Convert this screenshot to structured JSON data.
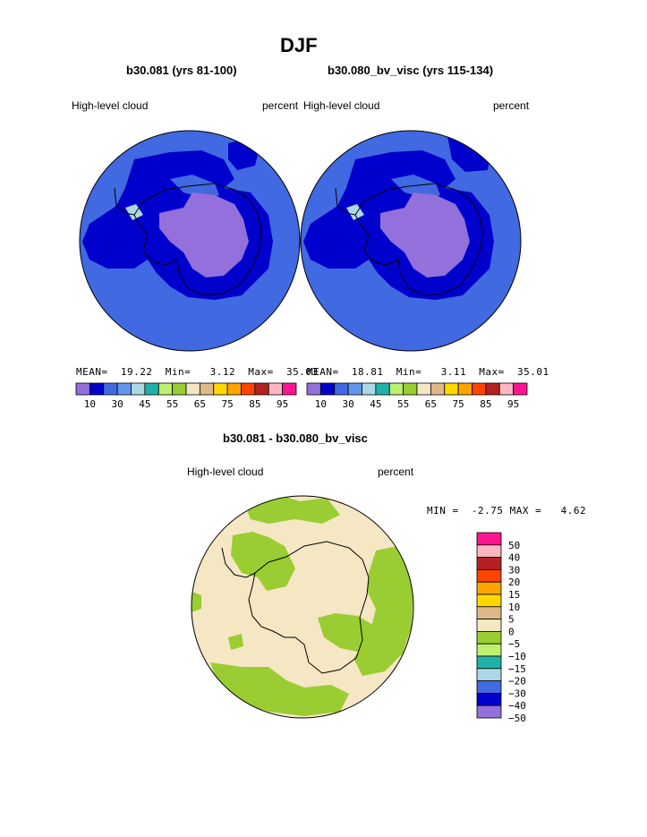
{
  "figure": {
    "title": "DJF",
    "diff_title": "b30.081 - b30.080_bv_visc"
  },
  "chart_data": [
    {
      "type": "heatmap",
      "projection": "south-polar-stereographic",
      "case_title": "b30.081 (yrs 81-100)",
      "field_label": "High-level cloud",
      "units_label": "percent",
      "stats_label": "MEAN=  19.22  Min=   3.12  Max=  35.03",
      "mean": 19.22,
      "min": 3.12,
      "max": 35.03,
      "color_levels": [
        10,
        30,
        45,
        55,
        65,
        75,
        85,
        95
      ],
      "colors": [
        "#9370db",
        "#0000cd",
        "#4169e1",
        "#6495ed",
        "#add8e6",
        "#20b2aa",
        "#bfef6f",
        "#9acd32",
        "#f5e6c4",
        "#deb887",
        "#ffd700",
        "#ffa500",
        "#ff4500",
        "#b22222",
        "#ffb6c1",
        "#ff1493"
      ]
    },
    {
      "type": "heatmap",
      "projection": "south-polar-stereographic",
      "case_title": "b30.080_bv_visc (yrs 115-134)",
      "field_label": "High-level cloud",
      "units_label": "percent",
      "stats_label": "MEAN=  18.81  Min=   3.11  Max=  35.01",
      "mean": 18.81,
      "min": 3.11,
      "max": 35.01,
      "color_levels": [
        10,
        30,
        45,
        55,
        65,
        75,
        85,
        95
      ],
      "colors": [
        "#9370db",
        "#0000cd",
        "#4169e1",
        "#6495ed",
        "#add8e6",
        "#20b2aa",
        "#bfef6f",
        "#9acd32",
        "#f5e6c4",
        "#deb887",
        "#ffd700",
        "#ffa500",
        "#ff4500",
        "#b22222",
        "#ffb6c1",
        "#ff1493"
      ]
    },
    {
      "type": "heatmap",
      "projection": "south-polar-stereographic",
      "case_title": "b30.081 - b30.080_bv_visc",
      "field_label": "High-level cloud",
      "units_label": "percent",
      "stats_label": "MIN =  -2.75 MAX =   4.62",
      "min": -2.75,
      "max": 4.62,
      "legend_orientation": "vertical",
      "legend_position": "right",
      "color_levels": [
        50,
        40,
        30,
        20,
        15,
        10,
        5,
        0,
        -5,
        -10,
        -15,
        -20,
        -30,
        -40,
        -50
      ],
      "level_labels": [
        "50",
        "40",
        "30",
        "20",
        "15",
        "10",
        "5",
        "0",
        "−5",
        "−10",
        "−15",
        "−20",
        "−30",
        "−40",
        "−50"
      ],
      "colors": [
        "#ff1493",
        "#ffb6c1",
        "#b22222",
        "#ff4500",
        "#ffa500",
        "#ffd700",
        "#deb887",
        "#f5e6c4",
        "#9acd32",
        "#bfef6f",
        "#20b2aa",
        "#add8e6",
        "#4169e1",
        "#0000cd",
        "#9370db"
      ]
    }
  ]
}
